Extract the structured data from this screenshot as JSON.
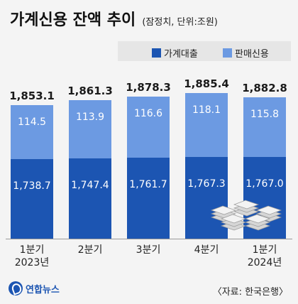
{
  "title": "가계신용 잔액 추이",
  "subtitle": "(잠정치, 단위:조원)",
  "legend": {
    "loan": "가계대출",
    "credit": "판매신용"
  },
  "colors": {
    "loan": "#1c55b2",
    "credit": "#6c9ae2",
    "total": "#1a1a1a",
    "label_light": "#ffffff"
  },
  "source": "〈자료: 한국은행〉",
  "logo": "연합뉴스",
  "icons": [
    "yonhap-logo-icon",
    "stacked-money-icon"
  ],
  "chart_data": {
    "type": "bar",
    "stacked": true,
    "categories": [
      [
        "1분기",
        "2023년"
      ],
      [
        "2분기"
      ],
      [
        "3분기"
      ],
      [
        "4분기"
      ],
      [
        "1분기",
        "2024년"
      ]
    ],
    "series": [
      {
        "name": "가계대출",
        "key": "loan",
        "values": [
          1738.7,
          1747.4,
          1761.7,
          1767.3,
          1767.0
        ],
        "labels": [
          "1,738.7",
          "1,747.4",
          "1,761.7",
          "1,767.3",
          "1,767.0"
        ]
      },
      {
        "name": "판매신용",
        "key": "credit",
        "values": [
          114.5,
          113.9,
          116.6,
          118.1,
          115.8
        ],
        "labels": [
          "114.5",
          "113.9",
          "116.6",
          "118.1",
          "115.8"
        ]
      }
    ],
    "totals": [
      1853.1,
      1861.3,
      1878.3,
      1885.4,
      1882.8
    ],
    "total_labels": [
      "1,853.1",
      "1,861.3",
      "1,878.3",
      "1,885.4",
      "1,882.8"
    ]
  }
}
